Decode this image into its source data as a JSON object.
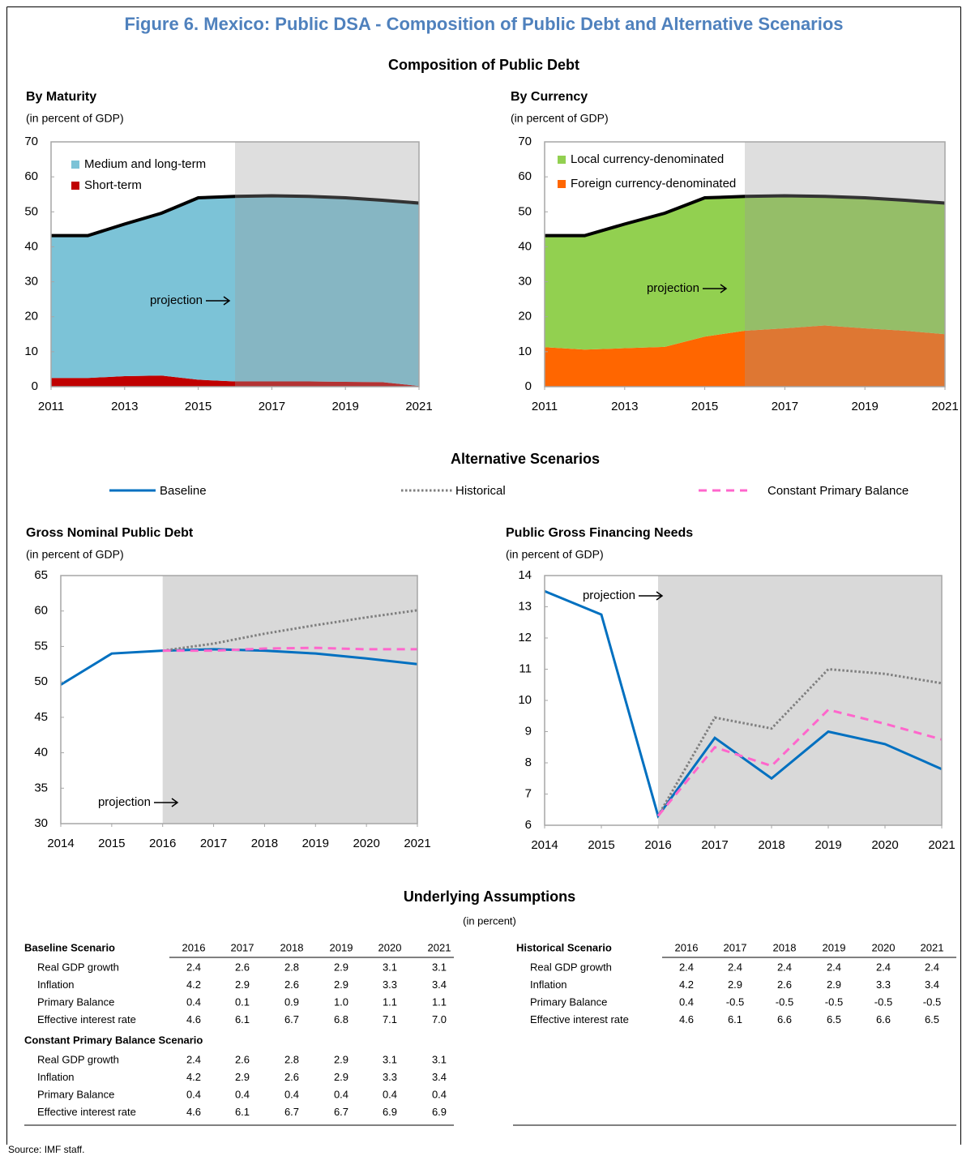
{
  "title": "Figure 6. Mexico: Public DSA - Composition of Public Debt and Alternative Scenarios",
  "composition_title": "Composition of Public Debt",
  "scenarios_title": "Alternative Scenarios",
  "assumptions_title": "Underlying Assumptions",
  "assumptions_subtitle": "(in percent)",
  "source": "Source: IMF staff.",
  "chart_data": [
    {
      "type": "area",
      "title": "By Maturity",
      "subtitle": "(in percent of GDP)",
      "x": [
        2011,
        2012,
        2013,
        2014,
        2015,
        2016,
        2017,
        2018,
        2019,
        2020,
        2021
      ],
      "xlim": [
        2011,
        2021
      ],
      "xticks": [
        2011,
        2013,
        2015,
        2017,
        2019,
        2021
      ],
      "ylim": [
        0,
        70
      ],
      "yticks": [
        0,
        10,
        20,
        30,
        40,
        50,
        60,
        70
      ],
      "series": [
        {
          "name": "Short-term",
          "color": "#c00000",
          "values": [
            2.5,
            2.5,
            3.0,
            3.2,
            2.0,
            1.5,
            1.5,
            1.5,
            1.4,
            1.3,
            0.2
          ]
        },
        {
          "name": "Medium and long-term",
          "color": "#7cc3d7",
          "values": [
            40.7,
            40.7,
            43.5,
            46.4,
            52.0,
            52.9,
            53.1,
            52.9,
            52.6,
            52.0,
            52.3
          ]
        }
      ],
      "annotation": "projection",
      "shade_from": 2016
    },
    {
      "type": "area",
      "title": "By Currency",
      "subtitle": "(in percent of GDP)",
      "x": [
        2011,
        2012,
        2013,
        2014,
        2015,
        2016,
        2017,
        2018,
        2019,
        2020,
        2021
      ],
      "xlim": [
        2011,
        2021
      ],
      "xticks": [
        2011,
        2013,
        2015,
        2017,
        2019,
        2021
      ],
      "ylim": [
        0,
        70
      ],
      "yticks": [
        0,
        10,
        20,
        30,
        40,
        50,
        60,
        70
      ],
      "series": [
        {
          "name": "Foreign currency-denominated",
          "color": "#ff6600",
          "values": [
            11.3,
            10.6,
            11.0,
            11.4,
            14.3,
            16.0,
            16.7,
            17.5,
            16.7,
            16.0,
            15.0
          ]
        },
        {
          "name": "Local currency-denominated",
          "color": "#92d050",
          "values": [
            31.9,
            32.6,
            35.5,
            38.2,
            39.7,
            38.4,
            37.9,
            36.9,
            37.3,
            37.3,
            37.5
          ]
        }
      ],
      "annotation": "projection",
      "shade_from": 2016
    },
    {
      "type": "line",
      "title": "Gross Nominal Public Debt",
      "subtitle": "(in percent of GDP)",
      "x": [
        2014,
        2015,
        2016,
        2017,
        2018,
        2019,
        2020,
        2021
      ],
      "xlim": [
        2014,
        2021
      ],
      "xticks": [
        2014,
        2015,
        2016,
        2017,
        2018,
        2019,
        2020,
        2021
      ],
      "ylim": [
        30,
        65
      ],
      "yticks": [
        30,
        35,
        40,
        45,
        50,
        55,
        60,
        65
      ],
      "series": [
        {
          "name": "Baseline",
          "color": "#0070c0",
          "dash": "solid",
          "values": [
            49.6,
            54.0,
            54.4,
            54.6,
            54.4,
            54.0,
            53.3,
            52.5
          ]
        },
        {
          "name": "Historical",
          "color": "#7f7f7f",
          "dash": "dotted",
          "values": [
            null,
            null,
            54.4,
            55.4,
            56.8,
            58.0,
            59.1,
            60.1
          ]
        },
        {
          "name": "Constant Primary Balance",
          "color": "#ff66cc",
          "dash": "dashed",
          "values": [
            null,
            null,
            54.4,
            54.4,
            54.7,
            54.8,
            54.6,
            54.6
          ]
        }
      ],
      "annotation": "projection",
      "shade_from": 2016
    },
    {
      "type": "line",
      "title": "Public Gross Financing Needs",
      "subtitle": "(in percent of GDP)",
      "x": [
        2014,
        2015,
        2016,
        2017,
        2018,
        2019,
        2020,
        2021
      ],
      "xlim": [
        2014,
        2021
      ],
      "xticks": [
        2014,
        2015,
        2016,
        2017,
        2018,
        2019,
        2020,
        2021
      ],
      "ylim": [
        6,
        14
      ],
      "yticks": [
        6,
        7,
        8,
        9,
        10,
        11,
        12,
        13,
        14
      ],
      "series": [
        {
          "color": "#0070c0",
          "dash": "solid",
          "values": [
            13.5,
            12.75,
            6.3,
            8.8,
            7.5,
            9.0,
            8.6,
            7.8
          ]
        },
        {
          "color": "#7f7f7f",
          "dash": "dotted",
          "values": [
            null,
            null,
            6.3,
            9.45,
            9.1,
            11.0,
            10.85,
            10.55
          ]
        },
        {
          "color": "#ff66cc",
          "dash": "dashed",
          "values": [
            null,
            null,
            6.3,
            8.5,
            7.9,
            9.7,
            9.25,
            8.75
          ]
        }
      ],
      "annotation": "projection",
      "shade_from": 2016
    }
  ],
  "tables": [
    {
      "title": "Baseline Scenario",
      "columns": [
        "2016",
        "2017",
        "2018",
        "2019",
        "2020",
        "2021"
      ],
      "rows": [
        [
          "Real GDP growth",
          "2.4",
          "2.6",
          "2.8",
          "2.9",
          "3.1",
          "3.1"
        ],
        [
          "Inflation",
          "4.2",
          "2.9",
          "2.6",
          "2.9",
          "3.3",
          "3.4"
        ],
        [
          "Primary Balance",
          "0.4",
          "0.1",
          "0.9",
          "1.0",
          "1.1",
          "1.1"
        ],
        [
          "Effective interest rate",
          "4.6",
          "6.1",
          "6.7",
          "6.8",
          "7.1",
          "7.0"
        ]
      ]
    },
    {
      "title": "Constant Primary Balance Scenario",
      "rows": [
        [
          "Real GDP growth",
          "2.4",
          "2.6",
          "2.8",
          "2.9",
          "3.1",
          "3.1"
        ],
        [
          "Inflation",
          "4.2",
          "2.9",
          "2.6",
          "2.9",
          "3.3",
          "3.4"
        ],
        [
          "Primary Balance",
          "0.4",
          "0.4",
          "0.4",
          "0.4",
          "0.4",
          "0.4"
        ],
        [
          "Effective interest rate",
          "4.6",
          "6.1",
          "6.7",
          "6.7",
          "6.9",
          "6.9"
        ]
      ]
    },
    {
      "title": "Historical Scenario",
      "columns": [
        "2016",
        "2017",
        "2018",
        "2019",
        "2020",
        "2021"
      ],
      "rows": [
        [
          "Real GDP growth",
          "2.4",
          "2.4",
          "2.4",
          "2.4",
          "2.4",
          "2.4"
        ],
        [
          "Inflation",
          "4.2",
          "2.9",
          "2.6",
          "2.9",
          "3.3",
          "3.4"
        ],
        [
          "Primary Balance",
          "0.4",
          "-0.5",
          "-0.5",
          "-0.5",
          "-0.5",
          "-0.5"
        ],
        [
          "Effective interest rate",
          "4.6",
          "6.1",
          "6.6",
          "6.5",
          "6.6",
          "6.5"
        ]
      ]
    }
  ]
}
